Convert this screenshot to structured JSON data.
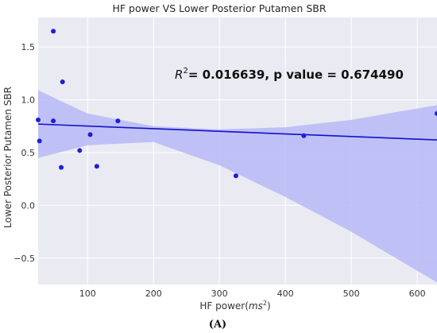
{
  "chart_data": {
    "type": "scatter",
    "title": "HF power VS Lower Posterior Putamen SBR",
    "xlabel_prefix": "HF power(",
    "xlabel_unit": "ms",
    "xlabel_sup": "2",
    "xlabel_suffix": ")",
    "ylabel": "Lower Posterior Putamen SBR",
    "annotation": {
      "r_symbol": "R",
      "r_sup": "2",
      "text": "= 0.016639, p value = 0.674490"
    },
    "panel_label": "(A)",
    "xlim": [
      25,
      630
    ],
    "ylim": [
      -0.75,
      1.78
    ],
    "xticks": [
      100,
      200,
      300,
      400,
      500,
      600
    ],
    "yticks": [
      -0.5,
      0.0,
      0.5,
      1.0,
      1.5
    ],
    "xtick_labels": [
      "100",
      "200",
      "300",
      "400",
      "500",
      "600"
    ],
    "ytick_labels": [
      "−0.5",
      "0.0",
      "0.5",
      "1.0",
      "1.5"
    ],
    "grid": true,
    "points": [
      {
        "x": 25,
        "y": 0.81
      },
      {
        "x": 27,
        "y": 0.61
      },
      {
        "x": 48,
        "y": 1.65
      },
      {
        "x": 48,
        "y": 0.8
      },
      {
        "x": 62,
        "y": 1.17
      },
      {
        "x": 60,
        "y": 0.36
      },
      {
        "x": 88,
        "y": 0.52
      },
      {
        "x": 104,
        "y": 0.67
      },
      {
        "x": 114,
        "y": 0.37
      },
      {
        "x": 146,
        "y": 0.8
      },
      {
        "x": 325,
        "y": 0.28
      },
      {
        "x": 428,
        "y": 0.66
      },
      {
        "x": 630,
        "y": 0.87
      }
    ],
    "regression_line": {
      "x": [
        25,
        630
      ],
      "y": [
        0.77,
        0.62
      ]
    },
    "confidence_band": {
      "x": [
        25,
        100,
        200,
        300,
        400,
        500,
        630
      ],
      "upper": [
        1.09,
        0.87,
        0.75,
        0.72,
        0.74,
        0.81,
        0.95
      ],
      "lower": [
        0.45,
        0.57,
        0.6,
        0.38,
        0.08,
        -0.25,
        -0.73
      ]
    },
    "colors": {
      "points": "#1f1fd6",
      "line": "#1212c8",
      "band": "#b7b8f7",
      "plot_bg": "#eaeaf2",
      "grid": "#ffffff"
    }
  }
}
